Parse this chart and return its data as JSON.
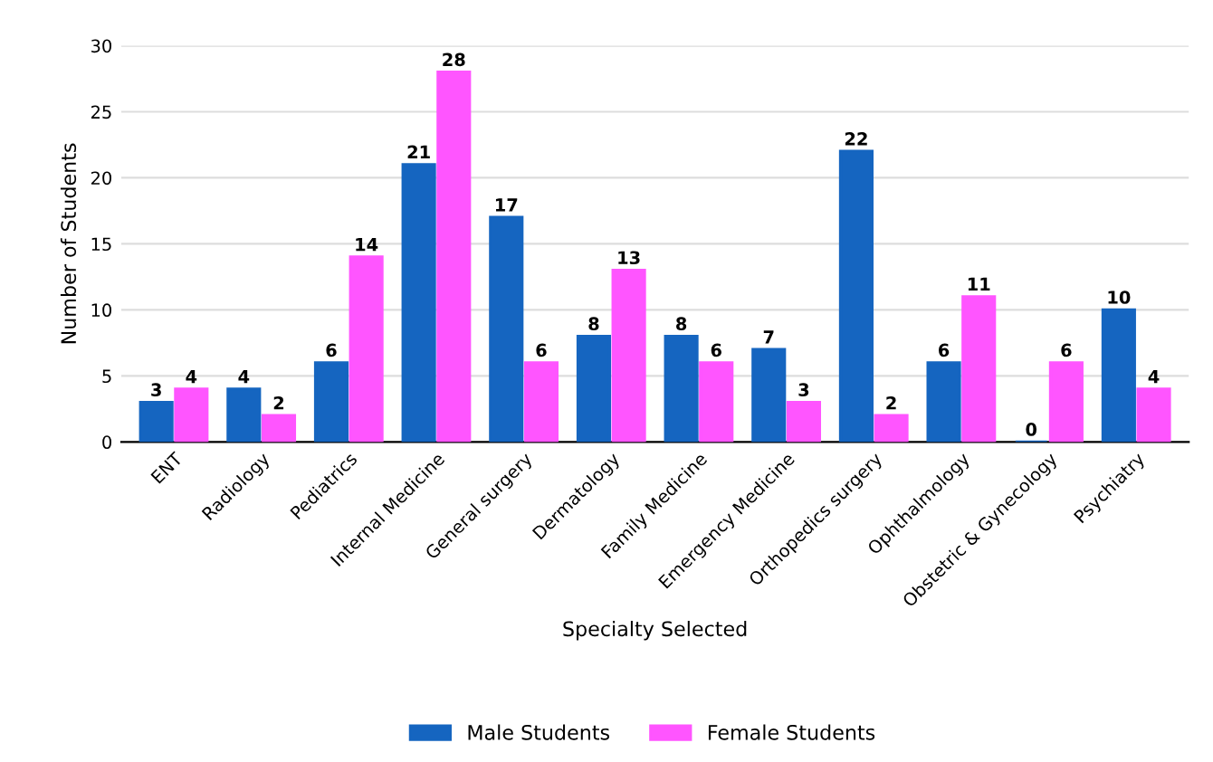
{
  "chart_data": {
    "type": "bar",
    "xlabel": "Specialty Selected",
    "ylabel": "Number of Students",
    "categories": [
      "ENT",
      "Radiology",
      "Pediatrics",
      "Internal Medicine",
      "General surgery",
      "Dermatology",
      "Family Medicine",
      "Emergency Medicine",
      "Orthopedics surgery",
      "Ophthalmology",
      "Obstetric & Gynecology",
      "Psychiatry"
    ],
    "series": [
      {
        "name": "Male Students",
        "color": "#1565c0",
        "values": [
          3,
          4,
          6,
          21,
          17,
          8,
          8,
          7,
          22,
          6,
          0,
          10
        ]
      },
      {
        "name": "Female Students",
        "color": "#ff55ff",
        "values": [
          4,
          2,
          14,
          28,
          6,
          13,
          6,
          3,
          2,
          11,
          6,
          4
        ]
      }
    ],
    "ylim": [
      0,
      30
    ],
    "yticks": [
      0,
      5,
      10,
      15,
      20,
      25,
      30
    ],
    "grid": "y",
    "legend": "bottom",
    "data_labels": true
  }
}
